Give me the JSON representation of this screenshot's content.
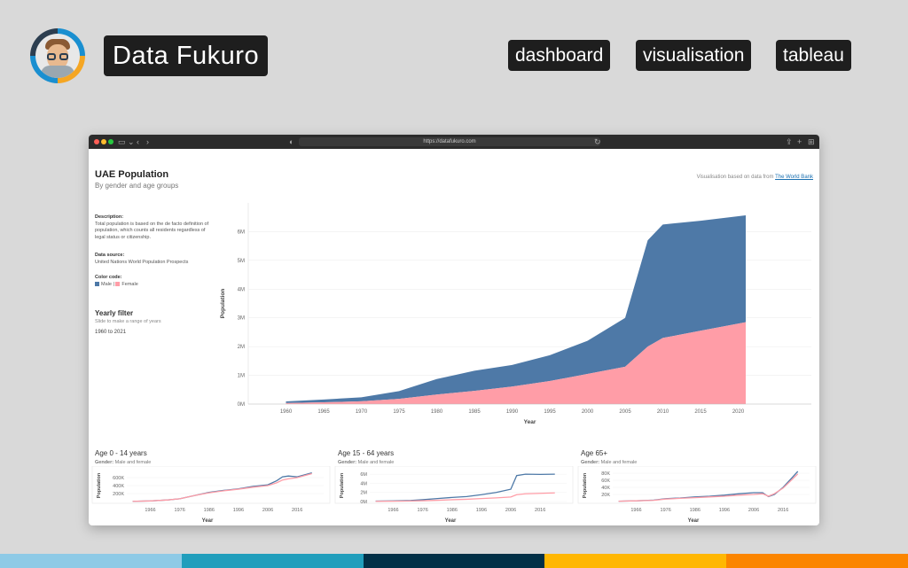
{
  "brand": {
    "name": "Data Fukuro"
  },
  "tags": [
    "dashboard",
    "visualisation",
    "tableau"
  ],
  "browser": {
    "url": "https://datafukuro.com"
  },
  "dashboard": {
    "title": "UAE Population",
    "subtitle": "By gender and age groups",
    "credit_prefix": "Visualisation based on data from ",
    "credit_link": "The World Bank",
    "description_label": "Description:",
    "description_text": "Total population is based on the de facto definition of population, which counts all residents regardless of legal status or citizenship.",
    "source_label": "Data source:",
    "source_text": "United Nations World Population Prospects",
    "color_label": "Color code:",
    "color_male": "Male",
    "color_female": "Female",
    "filter_title": "Yearly filter",
    "filter_sub": "Slide to make a range of years",
    "filter_value": "1960 to 2021"
  },
  "colors": {
    "male": "#4e79a7",
    "female": "#ff9da7"
  },
  "chart_data": [
    {
      "type": "area",
      "title": "UAE Population",
      "xlabel": "Year",
      "ylabel": "Population",
      "x": [
        1960,
        1965,
        1970,
        1975,
        1980,
        1985,
        1990,
        1995,
        2000,
        2005,
        2008,
        2010,
        2015,
        2021
      ],
      "series": [
        {
          "name": "Female",
          "values": [
            33000,
            60000,
            95000,
            180000,
            330000,
            460000,
            610000,
            800000,
            1050000,
            1300000,
            2000000,
            2300000,
            2550000,
            2850000
          ]
        },
        {
          "name": "Male",
          "values": [
            59000,
            98000,
            140000,
            270000,
            540000,
            700000,
            750000,
            900000,
            1150000,
            1700000,
            3700000,
            3950000,
            3830000,
            3720000
          ]
        }
      ],
      "xticks": [
        1960,
        1965,
        1970,
        1975,
        1980,
        1985,
        1990,
        1995,
        2000,
        2005,
        2010,
        2015,
        2020
      ],
      "ytick_labels": [
        "0M",
        "1M",
        "2M",
        "3M",
        "4M",
        "5M",
        "6M"
      ],
      "ylim": [
        0,
        7000000
      ],
      "stacked": true
    },
    {
      "type": "line",
      "title": "Age 0 - 14 years",
      "subtitle_label": "Gender:",
      "subtitle_value": "Male and female",
      "xlabel": "Year",
      "ylabel": "Population",
      "x": [
        1960,
        1966,
        1972,
        1976,
        1981,
        1986,
        1991,
        1996,
        2001,
        2006,
        2009,
        2011,
        2013,
        2016,
        2021
      ],
      "series": [
        {
          "name": "Male",
          "values": [
            5000,
            15000,
            40000,
            70000,
            150000,
            230000,
            280000,
            320000,
            380000,
            420000,
            520000,
            620000,
            640000,
            620000,
            720000
          ]
        },
        {
          "name": "Female",
          "values": [
            5000,
            15000,
            40000,
            70000,
            150000,
            220000,
            270000,
            310000,
            360000,
            400000,
            470000,
            540000,
            570000,
            600000,
            700000
          ]
        }
      ],
      "xticks": [
        1966,
        1976,
        1986,
        1996,
        2006,
        2016
      ],
      "ytick_labels": [
        "200K",
        "400K",
        "600K"
      ],
      "ylim": [
        0,
        800000
      ]
    },
    {
      "type": "line",
      "title": "Age 15 - 64 years",
      "subtitle_label": "Gender:",
      "subtitle_value": "Male and female",
      "xlabel": "Year",
      "ylabel": "Population",
      "x": [
        1960,
        1966,
        1972,
        1976,
        1981,
        1986,
        1991,
        1996,
        2001,
        2006,
        2008,
        2011,
        2016,
        2021
      ],
      "series": [
        {
          "name": "Male",
          "values": [
            100000,
            150000,
            250000,
            400000,
            650000,
            900000,
            1100000,
            1500000,
            2000000,
            2700000,
            5700000,
            6000000,
            5950000,
            6000000
          ]
        },
        {
          "name": "Female",
          "values": [
            50000,
            80000,
            120000,
            180000,
            280000,
            400000,
            500000,
            650000,
            800000,
            1000000,
            1500000,
            1700000,
            1800000,
            1900000
          ]
        }
      ],
      "xticks": [
        1966,
        1976,
        1986,
        1996,
        2006,
        2016
      ],
      "ytick_labels": [
        "0M",
        "2M",
        "4M",
        "6M"
      ],
      "ylim": [
        0,
        7000000
      ]
    },
    {
      "type": "line",
      "title": "Age 65+",
      "subtitle_label": "Gender:",
      "subtitle_value": "Male and female",
      "xlabel": "Year",
      "ylabel": "Population",
      "x": [
        1960,
        1966,
        1972,
        1976,
        1981,
        1986,
        1991,
        1996,
        2001,
        2006,
        2009,
        2011,
        2013,
        2016,
        2021
      ],
      "series": [
        {
          "name": "Male",
          "values": [
            1000,
            2000,
            4000,
            8000,
            10000,
            13000,
            15000,
            18000,
            22000,
            25000,
            25000,
            14000,
            20000,
            40000,
            85000
          ]
        },
        {
          "name": "Female",
          "values": [
            1000,
            2000,
            3500,
            7000,
            9000,
            11000,
            13000,
            15000,
            18000,
            20000,
            22000,
            15000,
            22000,
            38000,
            78000
          ]
        }
      ],
      "xticks": [
        1966,
        1976,
        1986,
        1996,
        2006,
        2016
      ],
      "ytick_labels": [
        "20K",
        "40K",
        "60K",
        "80K"
      ],
      "ylim": [
        0,
        90000
      ]
    }
  ]
}
